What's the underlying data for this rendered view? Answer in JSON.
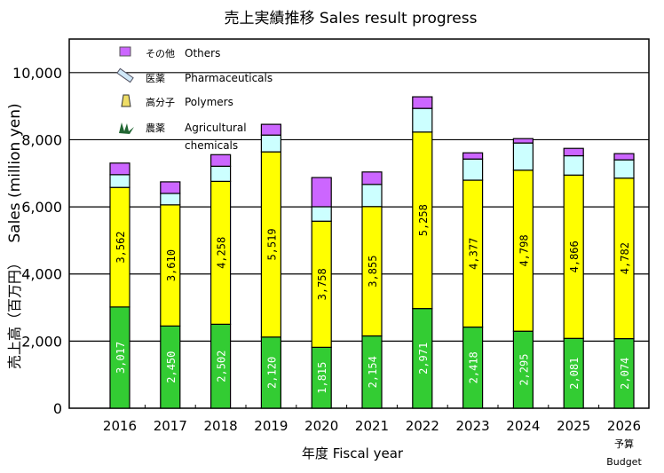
{
  "chart_data": {
    "type": "bar",
    "stacked": true,
    "title": "売上実績推移 Sales result progress",
    "xlabel": "年度 Fiscal year",
    "ylabel": "売上高（百万円） Sales (million yen)",
    "ylabel_jp": "売上高（百万円）",
    "ylabel_en": "Sales (million yen)",
    "ylim": [
      0,
      11000
    ],
    "yticks": [
      0,
      2000,
      4000,
      6000,
      8000,
      10000
    ],
    "ytick_labels": [
      "0",
      "2,000",
      "4,000",
      "6,000",
      "8,000",
      "10,000"
    ],
    "grid": true,
    "legend_position": "top-left",
    "categories": [
      "2016",
      "2017",
      "2018",
      "2019",
      "2020",
      "2021",
      "2022",
      "2023",
      "2024",
      "2025",
      "2026"
    ],
    "category_notes": {
      "2026": [
        "予算",
        "Budget"
      ]
    },
    "series": [
      {
        "name": "農薬 Agricultural chemicals",
        "name_jp": "農薬",
        "name_en": "Agricultural chemicals",
        "icon": "plant-icon",
        "color": "#33cc33",
        "label_color": "#ffffff",
        "values": [
          3017,
          2450,
          2502,
          2120,
          1815,
          2154,
          2971,
          2418,
          2295,
          2081,
          2074
        ],
        "labels": [
          "3,017",
          "2,450",
          "2,502",
          "2,120",
          "1,815",
          "2,154",
          "2,971",
          "2,418",
          "2,295",
          "2,081",
          "2,074"
        ]
      },
      {
        "name": "高分子 Polymers",
        "name_jp": "高分子",
        "name_en": "Polymers",
        "icon": "polymer-spool-icon",
        "color": "#ffff00",
        "label_color": "#000000",
        "values": [
          3562,
          3610,
          4258,
          5519,
          3758,
          3855,
          5258,
          4377,
          4798,
          4866,
          4782
        ],
        "labels": [
          "3,562",
          "3,610",
          "4,258",
          "5,519",
          "3,758",
          "3,855",
          "5,258",
          "4,377",
          "4,798",
          "4,866",
          "4,782"
        ]
      },
      {
        "name": "医薬 Pharmaceuticals",
        "name_jp": "医薬",
        "name_en": "Pharmaceuticals",
        "icon": "syringe-icon",
        "color": "#ccffff",
        "values": [
          380,
          340,
          450,
          500,
          430,
          660,
          705,
          630,
          810,
          575,
          545
        ]
      },
      {
        "name": "その他 Others",
        "name_jp": "その他",
        "name_en": "Others",
        "icon": "square-icon",
        "color": "#cc66ff",
        "values": [
          345,
          345,
          345,
          320,
          870,
          370,
          345,
          185,
          130,
          220,
          185
        ]
      }
    ]
  }
}
